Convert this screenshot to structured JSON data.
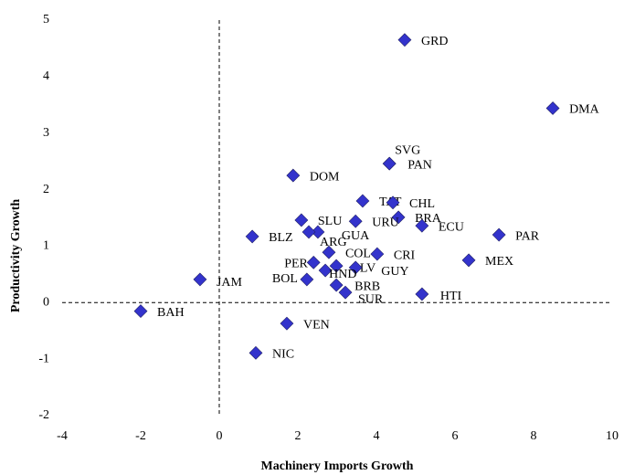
{
  "chart_data": {
    "type": "scatter",
    "xlabel": "Machinery Imports Growth",
    "ylabel": "Productivity Growth",
    "xlim": [
      -4,
      10
    ],
    "xticks": [
      -4,
      -2,
      0,
      2,
      4,
      6,
      8,
      10
    ],
    "ylim": [
      -2,
      5
    ],
    "yticks": [
      -2,
      -1,
      0,
      1,
      2,
      3,
      4,
      5
    ],
    "color": "#3333cc",
    "labels": [
      "GRD",
      "DMA",
      "SVG",
      "PAN",
      "DOM",
      "TAT",
      "CHL",
      "BRA",
      "ECU",
      "PAR",
      "URU",
      "SLU",
      "GUA",
      "ARG",
      "BLZ",
      "COL",
      "CRI",
      "PER",
      "SLV",
      "GUY",
      "HND",
      "BOL",
      "BRB",
      "SUR",
      "MEX",
      "HTI",
      "JAM",
      "BAH",
      "VEN",
      "NIC"
    ],
    "x": [
      4.72,
      8.49,
      4.33,
      4.33,
      1.88,
      3.65,
      4.42,
      4.56,
      5.16,
      7.12,
      3.47,
      2.09,
      2.51,
      2.28,
      0.84,
      2.79,
      4.02,
      2.4,
      2.98,
      3.47,
      2.7,
      2.23,
      2.98,
      3.21,
      6.35,
      5.16,
      -0.49,
      -2.0,
      1.72,
      0.93
    ],
    "y": [
      4.65,
      3.44,
      2.46,
      2.46,
      2.25,
      1.8,
      1.77,
      1.51,
      1.36,
      1.2,
      1.44,
      1.46,
      1.25,
      1.25,
      1.17,
      0.89,
      0.86,
      0.71,
      0.65,
      0.62,
      0.57,
      0.41,
      0.31,
      0.18,
      0.75,
      0.15,
      0.41,
      -0.15,
      -0.37,
      -0.89
    ]
  }
}
